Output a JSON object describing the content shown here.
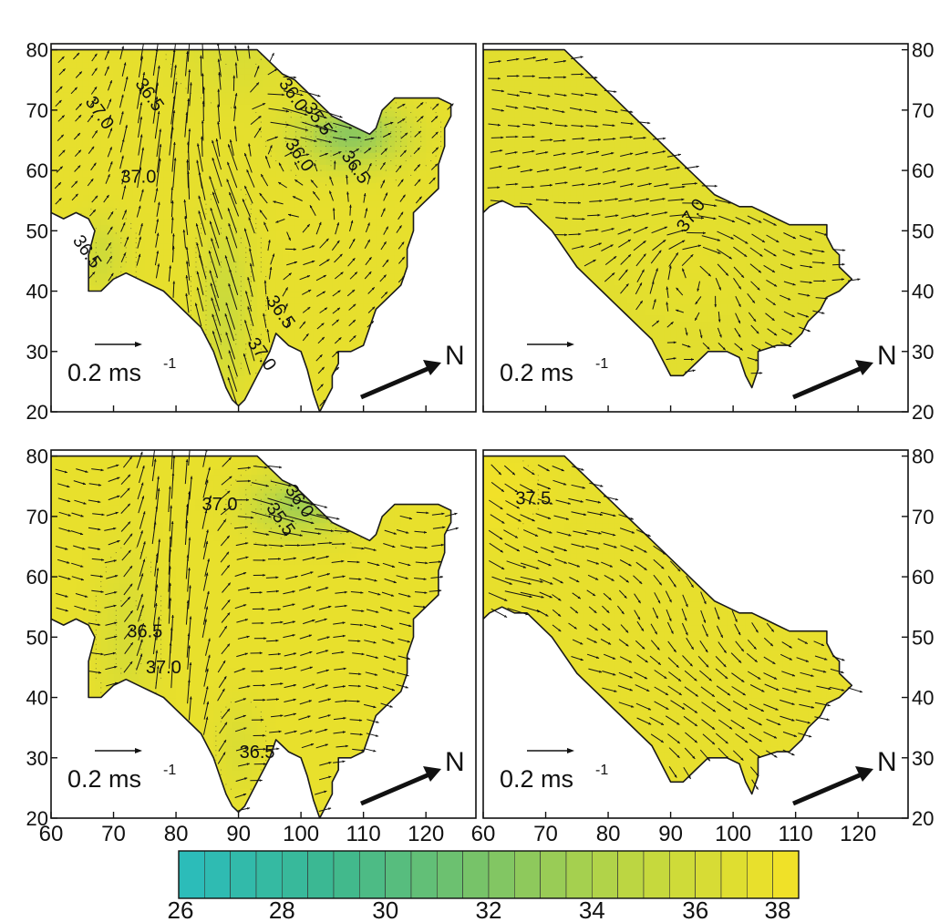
{
  "chart_data": [
    {
      "type": "vector_field",
      "title": "",
      "xlabel": "",
      "ylabel": "",
      "xlim": [
        60,
        128
      ],
      "ylim": [
        20,
        81
      ],
      "xticks": [
        60,
        70,
        80,
        90,
        100,
        110,
        120
      ],
      "yticks": [
        20,
        30,
        40,
        50,
        60,
        70,
        80
      ],
      "y_axis_side": "left",
      "scale_label": "0.2 ms",
      "scale_superscript": "-1",
      "scale_ms": 0.2,
      "north_label": "N",
      "contour_labels": [
        "37.0",
        "36.5",
        "36.0",
        "35.5",
        "36.0",
        "36.5",
        "37.0",
        "36.5",
        "36.5",
        "37.0"
      ],
      "salinity_range": [
        32.0,
        37.5
      ],
      "colors": {
        "field": "#b3d450",
        "low": "#3db38a"
      }
    },
    {
      "type": "vector_field",
      "title": "",
      "xlabel": "",
      "ylabel": "",
      "xlim": [
        60,
        128
      ],
      "ylim": [
        20,
        81
      ],
      "xticks": [
        60,
        70,
        80,
        90,
        100,
        110,
        120
      ],
      "yticks": [
        20,
        30,
        40,
        50,
        60,
        70,
        80
      ],
      "y_axis_side": "right",
      "scale_label": "0.2 ms",
      "scale_superscript": "-1",
      "scale_ms": 0.2,
      "north_label": "N",
      "contour_labels": [
        "37.0"
      ],
      "salinity_range": [
        36.8,
        37.2
      ],
      "colors": {
        "field": "#c9d83f"
      }
    },
    {
      "type": "vector_field",
      "title": "",
      "xlabel": "",
      "ylabel": "",
      "xlim": [
        60,
        128
      ],
      "ylim": [
        20,
        81
      ],
      "xticks": [
        60,
        70,
        80,
        90,
        100,
        110,
        120
      ],
      "yticks": [
        20,
        30,
        40,
        50,
        60,
        70,
        80
      ],
      "y_axis_side": "left",
      "scale_label": "0.2 ms",
      "scale_superscript": "-1",
      "scale_ms": 0.2,
      "north_label": "N",
      "contour_labels": [
        "36.0",
        "35.5",
        "36.5",
        "37.0",
        "36.5",
        "37.0"
      ],
      "salinity_range": [
        33.0,
        37.5
      ],
      "colors": {
        "field": "#c7d83c",
        "low": "#4db88a"
      }
    },
    {
      "type": "vector_field",
      "title": "",
      "xlabel": "",
      "ylabel": "",
      "xlim": [
        60,
        128
      ],
      "ylim": [
        20,
        81
      ],
      "xticks": [
        60,
        70,
        80,
        90,
        100,
        110,
        120
      ],
      "yticks": [
        20,
        30,
        40,
        50,
        60,
        70,
        80
      ],
      "y_axis_side": "right",
      "scale_label": "0.2 ms",
      "scale_superscript": "-1",
      "scale_ms": 0.2,
      "north_label": "N",
      "contour_labels": [
        "37.5"
      ],
      "salinity_range": [
        37.0,
        38.0
      ],
      "colors": {
        "field": "#d1dc38",
        "high": "#ecdf2e"
      }
    }
  ],
  "colorbar": {
    "type": "colorbar",
    "min": 26,
    "max": 38,
    "step": 0.5,
    "tick_labels": [
      "26",
      "28",
      "30",
      "32",
      "34",
      "36",
      "38"
    ],
    "tick_values": [
      26,
      28,
      30,
      32,
      34,
      36,
      38
    ],
    "colors": [
      "#2abcbd",
      "#3db88f",
      "#7cc466",
      "#c2d83f",
      "#f4e226"
    ]
  },
  "bottom_axis": {
    "left_labels": [
      "60",
      "70",
      "80",
      "90",
      "100",
      "110",
      "120"
    ],
    "right_labels": [
      "60",
      "70",
      "80",
      "90",
      "100",
      "110",
      "120"
    ]
  }
}
